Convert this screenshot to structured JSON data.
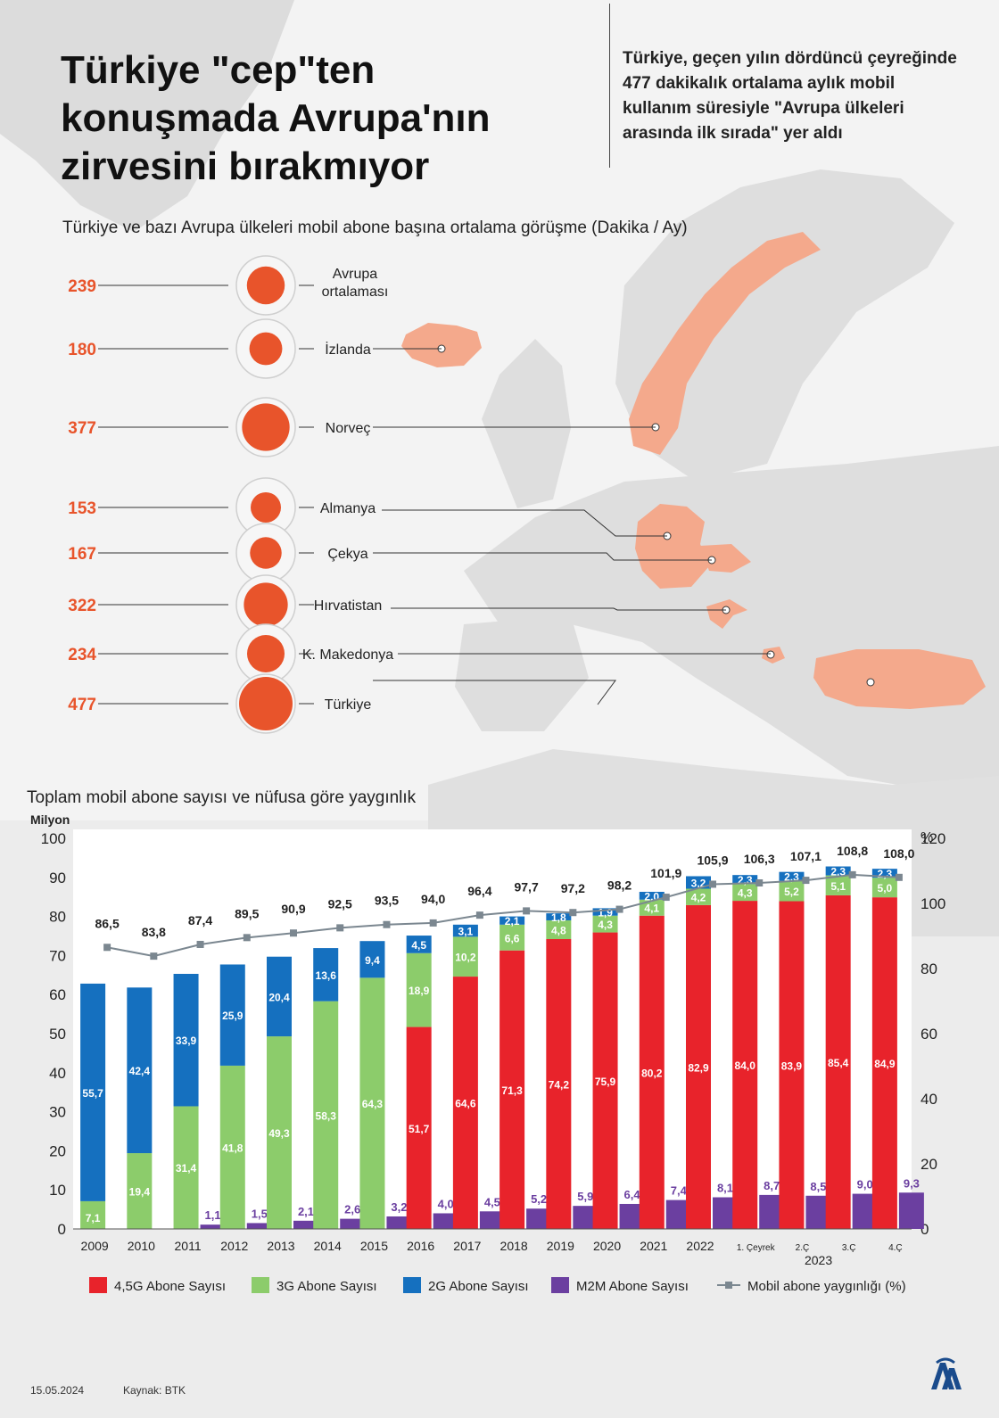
{
  "title": "Türkiye \"cep\"ten konuşmada Avrupa'nın zirvesini bırakmıyor",
  "intro": "Türkiye, geçen yılın dördüncü çeyreğinde 477 dakikalık ortalama aylık mobil kullanım süresiyle \"Avrupa ülkeleri arasında ilk sırada\" yer aldı",
  "bubble_chart": {
    "subtitle": "Türkiye ve bazı Avrupa ülkeleri mobil abone başına ortalama görüşme (Dakika / Ay)",
    "items": [
      {
        "label": "Avrupa ortalaması",
        "value": 239
      },
      {
        "label": "İzlanda",
        "value": 180
      },
      {
        "label": "Norveç",
        "value": 377
      },
      {
        "label": "Almanya",
        "value": 153
      },
      {
        "label": "Çekya",
        "value": 167
      },
      {
        "label": "Hırvatistan",
        "value": 322
      },
      {
        "label": "K. Makedonya",
        "value": 234
      },
      {
        "label": "Türkiye",
        "value": 477
      }
    ],
    "colors": {
      "value_text": "#e8542b",
      "bubble": "#e8542b",
      "highlight_country": "#f4a98c"
    }
  },
  "chart_data": {
    "type": "bar",
    "title": "Toplam mobil abone sayısı ve nüfusa göre yaygınlık",
    "ylabel": "Milyon",
    "y2label": "%",
    "ylim": [
      0,
      100
    ],
    "y2lim": [
      0,
      120
    ],
    "yticks": [
      0,
      10,
      20,
      30,
      40,
      50,
      60,
      70,
      80,
      90,
      100
    ],
    "y2ticks": [
      0,
      20,
      40,
      60,
      80,
      100,
      120
    ],
    "categories": [
      "2009",
      "2010",
      "2011",
      "2012",
      "2013",
      "2014",
      "2015",
      "2016",
      "2017",
      "2018",
      "2019",
      "2020",
      "2021",
      "2022",
      "1. Çeyrek",
      "2.Ç",
      "3.Ç",
      "4.Ç"
    ],
    "group_label": "2023",
    "series": [
      {
        "name": "4,5G Abone Sayısı",
        "color": "#e8232b",
        "values": [
          0,
          0,
          0,
          0,
          0,
          0,
          0,
          51.7,
          64.6,
          71.3,
          74.2,
          75.9,
          80.2,
          82.9,
          84.0,
          83.9,
          85.4,
          84.9
        ]
      },
      {
        "name": "3G Abone Sayısı",
        "color": "#8ccc6b",
        "values": [
          7.1,
          19.4,
          31.4,
          41.8,
          49.3,
          58.3,
          64.3,
          18.9,
          10.2,
          6.6,
          4.8,
          4.3,
          4.1,
          4.2,
          4.3,
          5.2,
          5.1,
          5.0
        ]
      },
      {
        "name": "2G Abone Sayısı",
        "color": "#1570bf",
        "values": [
          55.7,
          42.4,
          33.9,
          25.9,
          20.4,
          13.6,
          9.4,
          4.5,
          3.1,
          2.1,
          1.8,
          1.9,
          2.0,
          3.2,
          2.3,
          2.3,
          2.3,
          2.3
        ]
      },
      {
        "name": "M2M Abone Sayısı",
        "color": "#6b3fa0",
        "values": [
          null,
          null,
          1.1,
          1.5,
          2.1,
          2.6,
          3.2,
          4.0,
          4.5,
          5.2,
          5.9,
          6.4,
          7.4,
          8.1,
          8.7,
          8.5,
          9.0,
          9.3
        ]
      },
      {
        "name": "Mobil abone yaygınlığı (%)",
        "type": "line",
        "axis": "y2",
        "color": "#7b8790",
        "values": [
          86.5,
          83.8,
          87.4,
          89.5,
          90.9,
          92.5,
          93.5,
          94.0,
          96.4,
          97.7,
          97.2,
          98.2,
          101.9,
          105.9,
          106.3,
          107.1,
          108.8,
          108.0
        ]
      }
    ],
    "value_labels": {
      "4,5G Abone Sayısı": [
        "",
        "",
        "",
        "",
        "",
        "",
        "",
        "51,7",
        "64,6",
        "71,3",
        "74,2",
        "75,9",
        "80,2",
        "82,9",
        "84,0",
        "83,9",
        "85,4",
        "84,9"
      ],
      "3G Abone Sayısı": [
        "7,1",
        "19,4",
        "31,4",
        "41,8",
        "49,3",
        "58,3",
        "64,3",
        "18,9",
        "10,2",
        "6,6",
        "4,8",
        "4,3",
        "4,1",
        "4,2",
        "4,3",
        "5,2",
        "5,1",
        "5,0"
      ],
      "2G Abone Sayısı": [
        "55,7",
        "42,4",
        "33,9",
        "25,9",
        "20,4",
        "13,6",
        "9,4",
        "4,5",
        "3,1",
        "2,1",
        "1,8",
        "1,9",
        "2,0",
        "3,2",
        "2,3",
        "2,3",
        "2,3",
        "2,3"
      ],
      "M2M Abone Sayısı": [
        "",
        "",
        "1,1",
        "1,5",
        "2,1",
        "2,6",
        "3,2",
        "4,0",
        "4,5",
        "5,2",
        "5,9",
        "6,4",
        "7,4",
        "8,1",
        "8,7",
        "8,5",
        "9,0",
        "9,3"
      ],
      "Mobil abone yaygınlığı (%)": [
        "86,5",
        "83,8",
        "87,4",
        "89,5",
        "90,9",
        "92,5",
        "93,5",
        "94,0",
        "96,4",
        "97,7",
        "97,2",
        "98,2",
        "101,9",
        "105,9",
        "106,3",
        "107,1",
        "108,8",
        "108,0"
      ]
    },
    "legend_placement": "bottom",
    "grid": false
  },
  "footer": {
    "date": "15.05.2024",
    "source": "Kaynak: BTK"
  }
}
